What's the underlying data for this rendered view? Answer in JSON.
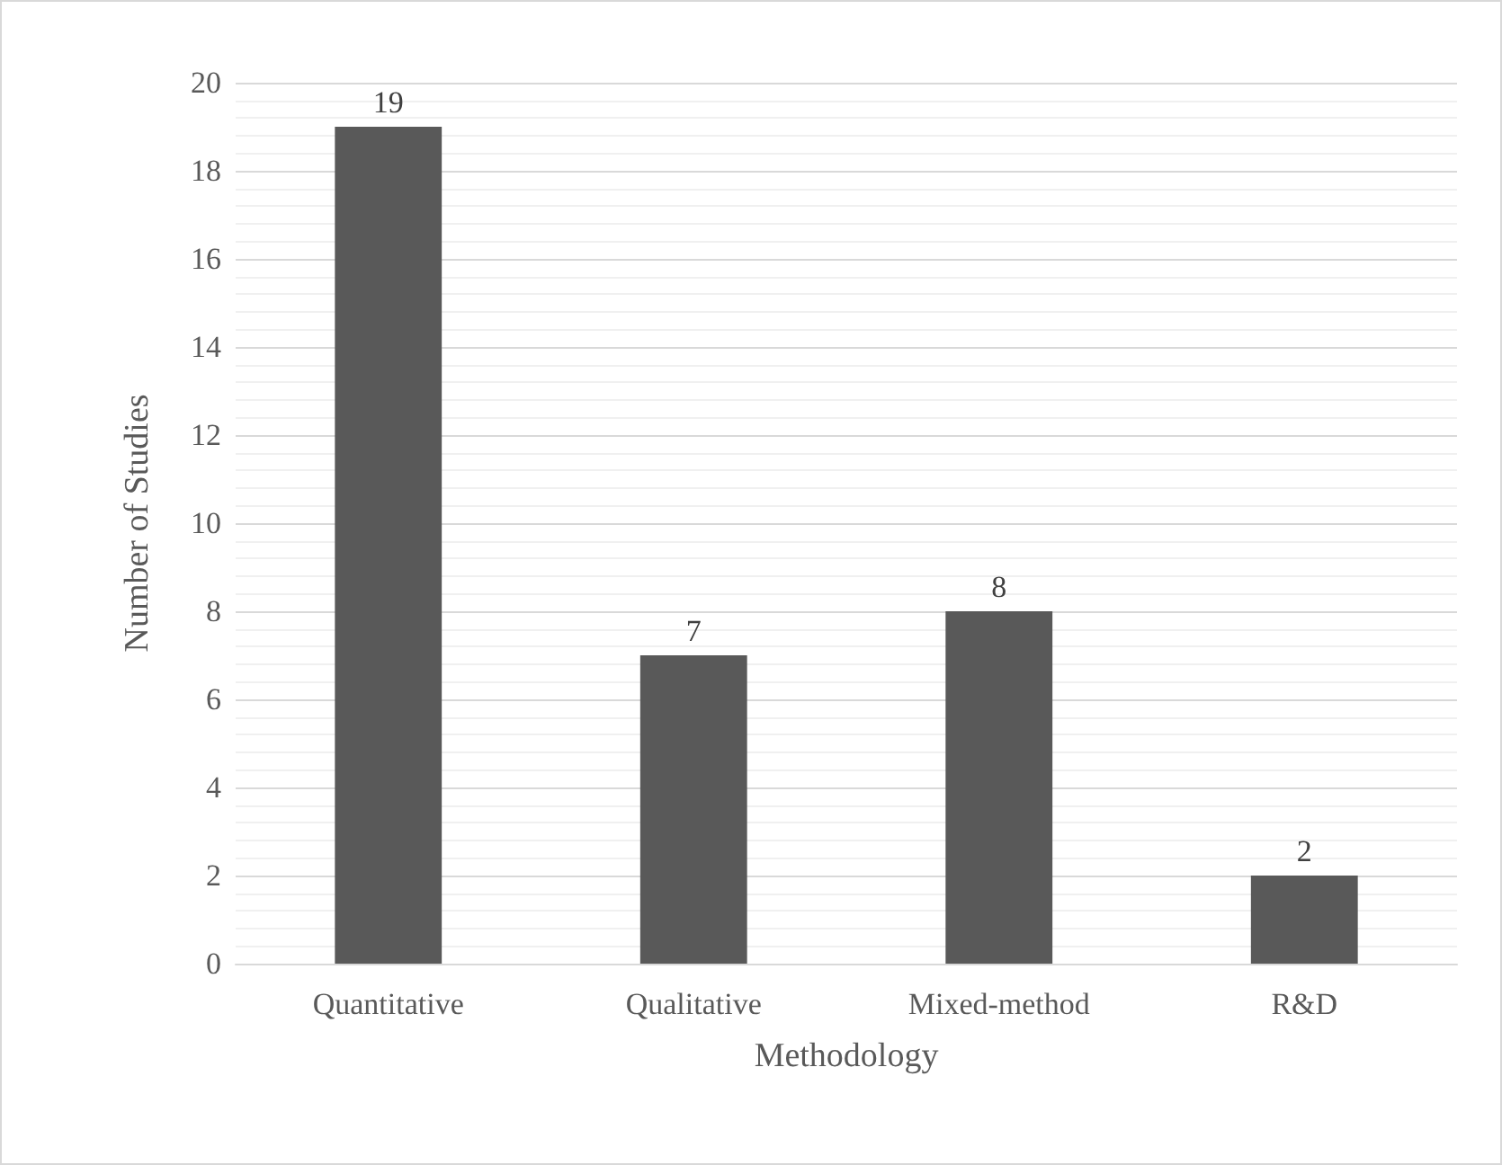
{
  "chart_data": {
    "type": "bar",
    "xlabel": "Methodology",
    "ylabel": "Number of Studies",
    "categories": [
      "Quantitative",
      "Qualitative",
      "Mixed-method",
      "R&D"
    ],
    "values": [
      19,
      7,
      8,
      2
    ],
    "color": "#595959",
    "ylim": [
      0,
      20
    ],
    "yticks": [
      0,
      2,
      4,
      6,
      8,
      10,
      12,
      14,
      16,
      18,
      20
    ],
    "grid": "y",
    "data_labels": true
  }
}
